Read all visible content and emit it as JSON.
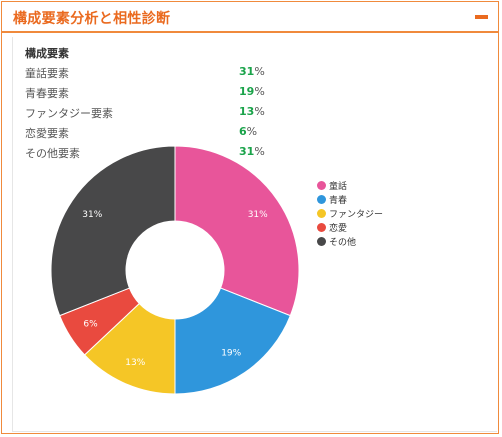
{
  "panel": {
    "title": "構成要素分析と相性診断"
  },
  "composition": {
    "title": "構成要素",
    "unit": "%",
    "rows": [
      {
        "label": "童話要素",
        "value": "31"
      },
      {
        "label": "青春要素",
        "value": "19"
      },
      {
        "label": "ファンタジー要素",
        "value": "13"
      },
      {
        "label": "恋愛要素",
        "value": "6"
      },
      {
        "label": "その他要素",
        "value": "31"
      }
    ]
  },
  "chart_data": {
    "type": "pie",
    "donut": true,
    "categories": [
      "童話",
      "青春",
      "ファンタジー",
      "恋愛",
      "その他"
    ],
    "values": [
      31,
      19,
      13,
      6,
      31
    ],
    "labels": [
      "31%",
      "19%",
      "13%",
      "6%",
      "31%"
    ],
    "colors": [
      "#e8559a",
      "#2f96dc",
      "#f5c626",
      "#e94a3f",
      "#484849"
    ],
    "legend_position": "right"
  }
}
